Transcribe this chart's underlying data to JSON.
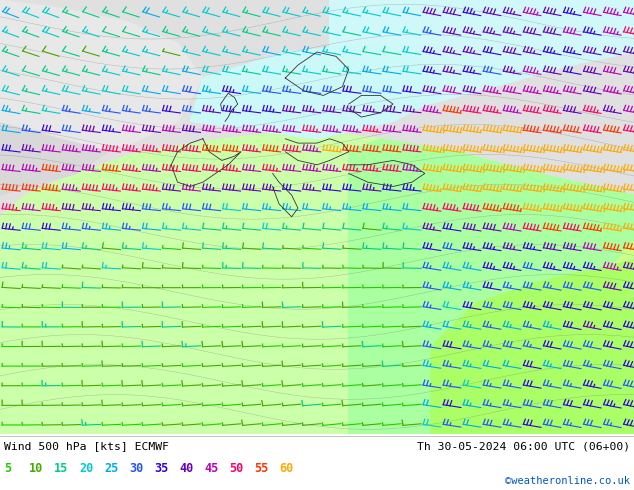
{
  "title_left": "Wind 500 hPa [kts] ECMWF",
  "title_right": "Th 30-05-2024 06:00 UTC (06+00)",
  "credit": "©weatheronline.co.uk",
  "legend_values": [
    5,
    10,
    15,
    20,
    25,
    30,
    35,
    40,
    45,
    50,
    55,
    60
  ],
  "legend_colors": [
    "#22cc00",
    "#44aa00",
    "#00cc88",
    "#00cccc",
    "#00aaee",
    "#2255ff",
    "#3300dd",
    "#6600bb",
    "#bb00bb",
    "#ff0066",
    "#ff3300",
    "#ffaa00"
  ],
  "fig_width": 6.34,
  "fig_height": 4.9,
  "bg_grey": "#e8e8e8",
  "bg_green_light": "#ccffaa",
  "bg_green_bright": "#aaff55",
  "bg_cyan": "#ccffff",
  "bg_sea": "#aaccff"
}
